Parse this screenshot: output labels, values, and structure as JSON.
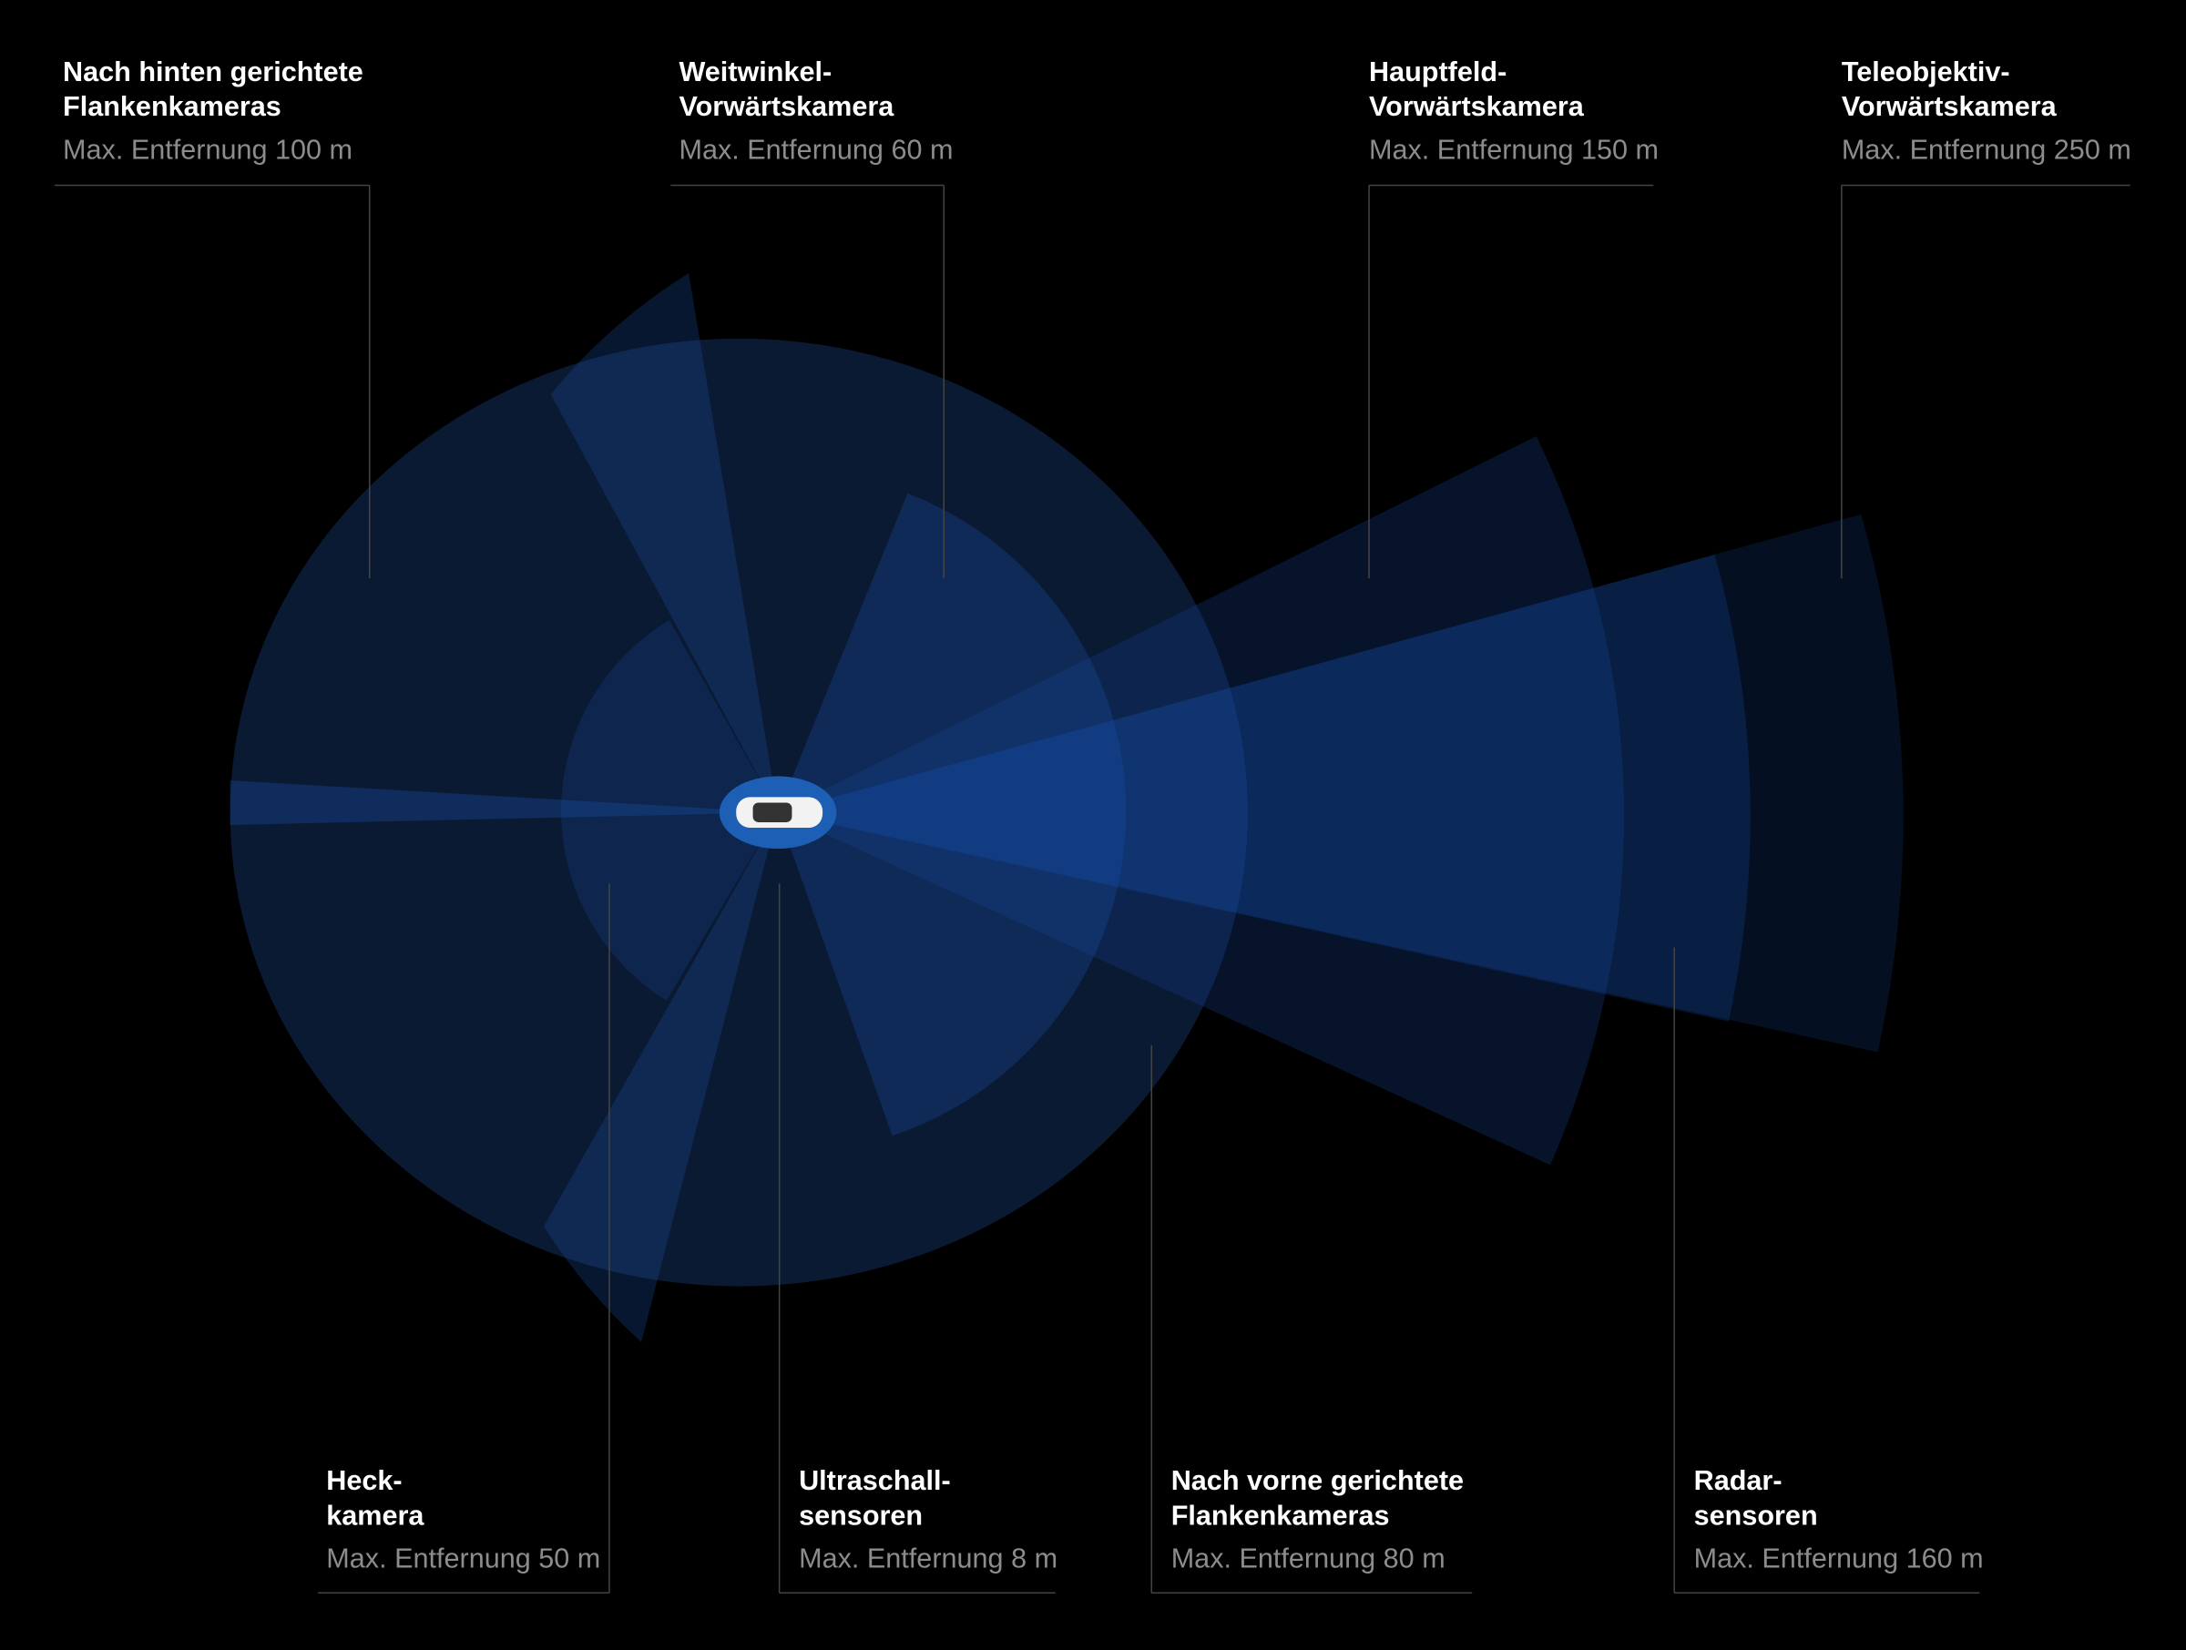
{
  "labels": [
    {
      "title": [
        "Nach hinten gerichtete",
        "Flankenkameras"
      ],
      "range": "Max. Entfernung 100 m"
    },
    {
      "title": [
        "Weitwinkel-",
        "Vorwärtskamera"
      ],
      "range": "Max. Entfernung 60 m"
    },
    {
      "title": [
        "Hauptfeld-",
        "Vorwärtskamera"
      ],
      "range": "Max. Entfernung 150 m"
    },
    {
      "title": [
        "Teleobjektiv-",
        "Vorwärtskamera"
      ],
      "range": "Max. Entfernung 250 m"
    },
    {
      "title": [
        "Heck-",
        "kamera"
      ],
      "range": "Max. Entfernung 50 m"
    },
    {
      "title": [
        "Ultraschall-",
        "sensoren"
      ],
      "range": "Max. Entfernung 8 m"
    },
    {
      "title": [
        "Nach vorne gerichtete",
        "Flankenkameras"
      ],
      "range": "Max. Entfernung 80 m"
    },
    {
      "title": [
        "Radar-",
        "sensoren"
      ],
      "range": "Max. Entfernung 160 m"
    }
  ]
}
